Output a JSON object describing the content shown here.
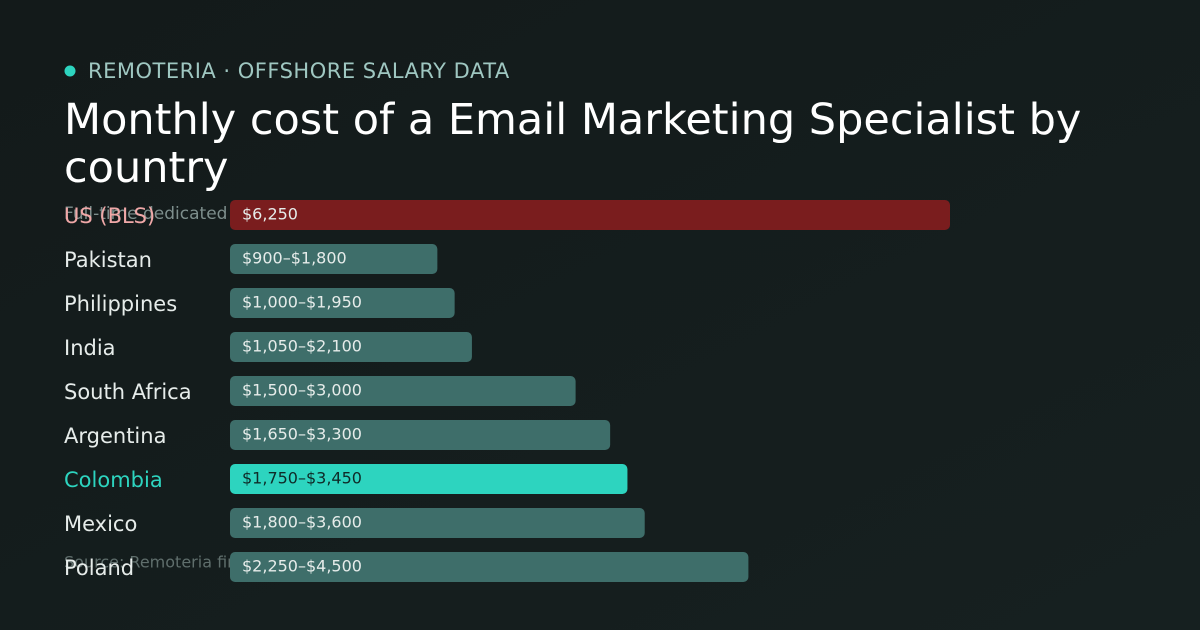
{
  "chart_data": {
    "type": "bar",
    "eyebrow": "REMOTERIA · OFFSHORE SALARY DATA",
    "title": "Monthly cost of a Email Marketing Specialist by country",
    "subtitle": "Full-time dedicated",
    "source": "Source: Remoteria first-party multi-country model · remoteria.com",
    "categories": [
      "US (BLS)",
      "Pakistan",
      "Philippines",
      "India",
      "South Africa",
      "Argentina",
      "Colombia",
      "Mexico",
      "Poland"
    ],
    "low": [
      6250,
      900,
      1000,
      1050,
      1500,
      1650,
      1750,
      1800,
      2250
    ],
    "high": [
      6250,
      1800,
      1950,
      2100,
      3000,
      3300,
      3450,
      3600,
      4500
    ],
    "value_labels": [
      "$6,250",
      "$900–$1,800",
      "$1,000–$1,950",
      "$1,050–$2,100",
      "$1,500–$3,000",
      "$1,650–$3,300",
      "$1,750–$3,450",
      "$1,800–$3,600",
      "$2,250–$4,500"
    ],
    "colors": [
      "#7a1d1e",
      "#3e6e6a",
      "#3e6e6a",
      "#3e6e6a",
      "#3e6e6a",
      "#3e6e6a",
      "#2dd4bf",
      "#3e6e6a",
      "#3e6e6a"
    ],
    "label_colors": [
      "#f0a8a8",
      "#e6ecea",
      "#e6ecea",
      "#e6ecea",
      "#e6ecea",
      "#e6ecea",
      "#2dd4bf",
      "#e6ecea",
      "#e6ecea"
    ],
    "xlim": [
      0,
      6250
    ]
  }
}
